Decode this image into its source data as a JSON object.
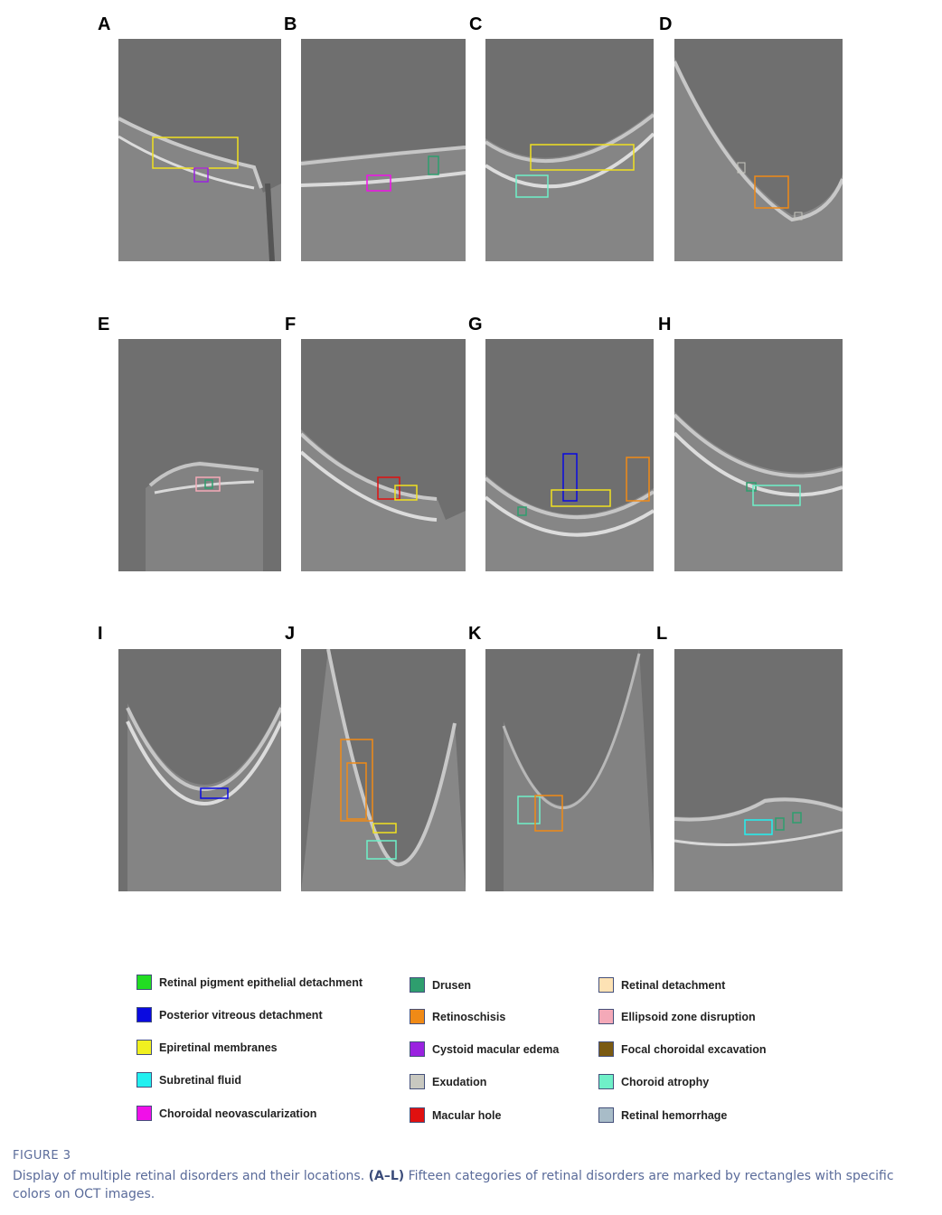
{
  "panels": [
    {
      "id": "A"
    },
    {
      "id": "B"
    },
    {
      "id": "C"
    },
    {
      "id": "D"
    },
    {
      "id": "E"
    },
    {
      "id": "F"
    },
    {
      "id": "G"
    },
    {
      "id": "H"
    },
    {
      "id": "I"
    },
    {
      "id": "J"
    },
    {
      "id": "K"
    },
    {
      "id": "L"
    }
  ],
  "legend": [
    {
      "label": "Retinal pigment epithelial detachment",
      "color": "#22dd22"
    },
    {
      "label": "Drusen",
      "color": "#2e9e6e"
    },
    {
      "label": "Retinal detachment",
      "color": "#fde2b4"
    },
    {
      "label": "Posterior vitreous detachment",
      "color": "#0a0ae0"
    },
    {
      "label": "Retinoschisis",
      "color": "#f08a16"
    },
    {
      "label": "Ellipsoid zone disruption",
      "color": "#f4a9b8"
    },
    {
      "label": "Epiretinal membranes",
      "color": "#f0f020"
    },
    {
      "label": "Cystoid macular edema",
      "color": "#9a22e0"
    },
    {
      "label": "Focal choroidal excavation",
      "color": "#7a5a12"
    },
    {
      "label": "Subretinal fluid",
      "color": "#22f0f0"
    },
    {
      "label": "Exudation",
      "color": "#c8c8c0"
    },
    {
      "label": "Choroid atrophy",
      "color": "#6ff0c8"
    },
    {
      "label": "Choroidal neovascularization",
      "color": "#f010e8"
    },
    {
      "label": "Macular hole",
      "color": "#e01010"
    },
    {
      "label": "Retinal hemorrhage",
      "color": "#a8bcc8"
    }
  ],
  "figure": {
    "label": "FIGURE 3",
    "caption_before": "Display of multiple retinal disorders and their locations.",
    "caption_bold": "(A–L)",
    "caption_after": "Fifteen categories of retinal disorders are marked by rectangles with specific colors on OCT images."
  }
}
